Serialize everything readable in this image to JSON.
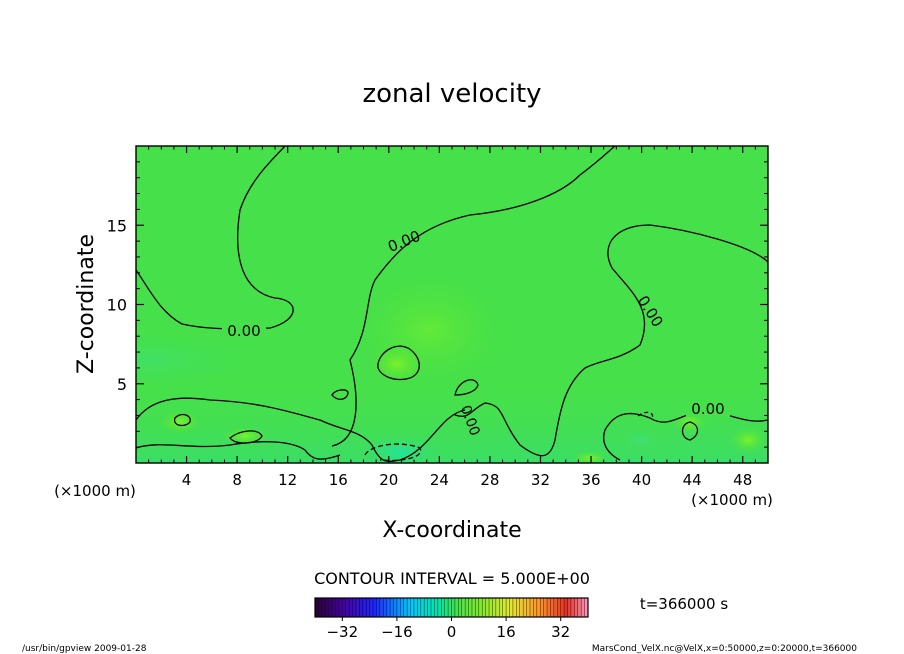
{
  "chart_data": {
    "type": "heatmap",
    "title": "zonal velocity",
    "xlabel": "X-coordinate",
    "ylabel": "Z-coordinate",
    "x_unit_left": "(×1000 m)",
    "x_unit_right": "(×1000 m)",
    "xlim": [
      0,
      50
    ],
    "ylim": [
      0,
      20
    ],
    "x_ticks": [
      4,
      8,
      12,
      16,
      20,
      24,
      28,
      32,
      36,
      40,
      44,
      48
    ],
    "y_ticks": [
      5,
      10,
      15
    ],
    "contour_interval_text": "CONTOUR INTERVAL = 5.000E+00",
    "time_text": "t=366000 s",
    "contour_labels": [
      "0.00",
      "0.00",
      "0.00",
      "0.00",
      "0.00"
    ],
    "colorbar": {
      "range": [
        -40,
        40
      ],
      "ticks": [
        -32,
        -16,
        0,
        16,
        32
      ],
      "colormap": "rainbow"
    },
    "background_value": 0,
    "features": [
      {
        "x": 21,
        "z": 6,
        "value": 5,
        "note": "positive cell"
      },
      {
        "x": 21,
        "z": 0.8,
        "value": -8,
        "note": "negative near surface"
      },
      {
        "x": 3,
        "z": 2.5,
        "value": 4
      },
      {
        "x": 8,
        "z": 1.8,
        "value": 4
      },
      {
        "x": 40,
        "z": 2.5,
        "value": -3
      },
      {
        "x": 44,
        "z": 2.5,
        "value": 4
      }
    ]
  },
  "footer": {
    "left": "/usr/bin/gpview  2009-01-28",
    "right": "MarsCond_VelX.nc@VelX,x=0:50000,z=0:20000,t=366000"
  }
}
